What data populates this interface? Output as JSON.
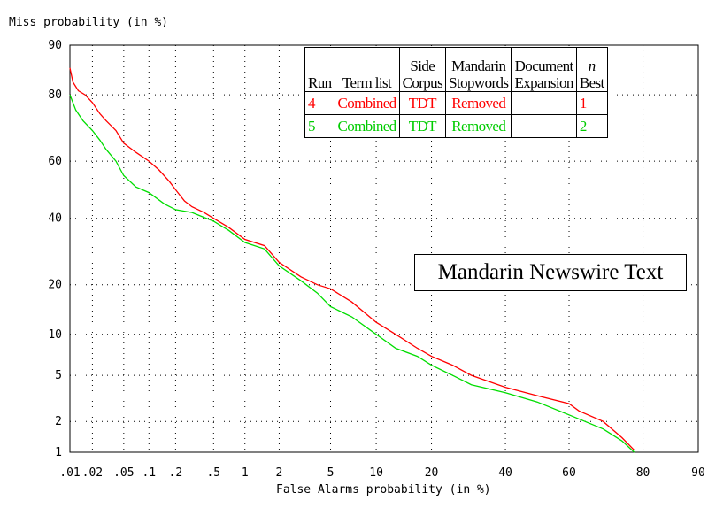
{
  "chart_data": {
    "type": "line",
    "title": "",
    "xlabel": "False Alarms probability (in %)",
    "ylabel": "Miss probability (in %)",
    "x_scale": "normal-deviate (probit)",
    "y_scale": "normal-deviate (probit)",
    "xlim": [
      0.01,
      90
    ],
    "ylim": [
      1,
      90
    ],
    "x_ticks": [
      ".01",
      ".02",
      ".05",
      ".1",
      ".2",
      ".5",
      "1",
      "2",
      "5",
      "10",
      "20",
      "40",
      "60",
      "80",
      "90"
    ],
    "x_tick_values": [
      0.01,
      0.02,
      0.05,
      0.1,
      0.2,
      0.5,
      1,
      2,
      5,
      10,
      20,
      40,
      60,
      80,
      90
    ],
    "y_ticks": [
      "1",
      "2",
      "5",
      "10",
      "20",
      "40",
      "60",
      "80",
      "90"
    ],
    "y_tick_values": [
      1,
      2,
      5,
      10,
      20,
      40,
      60,
      80,
      90
    ],
    "grid": true,
    "series": [
      {
        "name": "4",
        "color": "#ff0000",
        "points": [
          [
            0.01,
            86
          ],
          [
            0.011,
            83
          ],
          [
            0.013,
            81
          ],
          [
            0.016,
            80
          ],
          [
            0.02,
            78
          ],
          [
            0.025,
            75
          ],
          [
            0.03,
            73
          ],
          [
            0.04,
            70
          ],
          [
            0.05,
            66
          ],
          [
            0.07,
            63
          ],
          [
            0.1,
            60
          ],
          [
            0.13,
            57
          ],
          [
            0.17,
            53
          ],
          [
            0.2,
            50
          ],
          [
            0.25,
            46
          ],
          [
            0.3,
            44
          ],
          [
            0.4,
            42
          ],
          [
            0.5,
            40
          ],
          [
            0.7,
            37
          ],
          [
            1.0,
            33
          ],
          [
            1.5,
            31
          ],
          [
            2,
            26
          ],
          [
            3,
            22
          ],
          [
            4,
            20
          ],
          [
            5,
            19
          ],
          [
            7,
            16
          ],
          [
            10,
            12
          ],
          [
            13,
            10
          ],
          [
            17,
            8
          ],
          [
            20,
            7
          ],
          [
            25,
            6
          ],
          [
            30,
            5
          ],
          [
            40,
            4
          ],
          [
            50,
            3.4
          ],
          [
            60,
            2.9
          ],
          [
            63,
            2.5
          ],
          [
            70,
            2.0
          ],
          [
            75,
            1.4
          ],
          [
            78,
            1.05
          ]
        ]
      },
      {
        "name": "5",
        "color": "#00dd00",
        "points": [
          [
            0.01,
            80
          ],
          [
            0.012,
            76
          ],
          [
            0.015,
            73
          ],
          [
            0.02,
            70
          ],
          [
            0.025,
            67
          ],
          [
            0.03,
            64
          ],
          [
            0.04,
            60
          ],
          [
            0.05,
            55
          ],
          [
            0.07,
            51
          ],
          [
            0.1,
            49
          ],
          [
            0.15,
            45
          ],
          [
            0.2,
            43
          ],
          [
            0.3,
            42
          ],
          [
            0.5,
            39
          ],
          [
            0.7,
            36
          ],
          [
            1.0,
            32
          ],
          [
            1.5,
            30
          ],
          [
            2,
            25
          ],
          [
            3,
            21
          ],
          [
            4,
            18
          ],
          [
            5,
            15
          ],
          [
            7,
            13
          ],
          [
            10,
            10
          ],
          [
            13,
            8
          ],
          [
            17,
            7
          ],
          [
            20,
            6
          ],
          [
            25,
            5
          ],
          [
            30,
            4.2
          ],
          [
            40,
            3.6
          ],
          [
            50,
            3.0
          ],
          [
            60,
            2.3
          ],
          [
            70,
            1.7
          ],
          [
            75,
            1.3
          ],
          [
            78,
            1.0
          ]
        ]
      }
    ],
    "legend": {
      "placement": "top-right",
      "headers": [
        "Run",
        "Term list",
        "Side Corpus",
        "Mandarin Stopwords",
        "Document Expansion",
        "n Best"
      ],
      "rows": [
        {
          "run": "4",
          "term_list": "Combined",
          "side_corpus": "TDT",
          "stopwords": "Removed",
          "expansion": "",
          "best": "1",
          "color": "#ff0000"
        },
        {
          "run": "5",
          "term_list": "Combined",
          "side_corpus": "TDT",
          "stopwords": "Removed",
          "expansion": "",
          "best": "2",
          "color": "#00dd00"
        }
      ]
    },
    "annotation": "Mandarin Newswire Text"
  },
  "legend_headers": {
    "run": "Run",
    "term_list": "Term list",
    "side": "Side",
    "corpus": "Corpus",
    "mandarin": "Mandarin",
    "stopwords": "Stopwords",
    "document": "Document",
    "expansion": "Expansion",
    "n": "n",
    "best": "Best"
  }
}
